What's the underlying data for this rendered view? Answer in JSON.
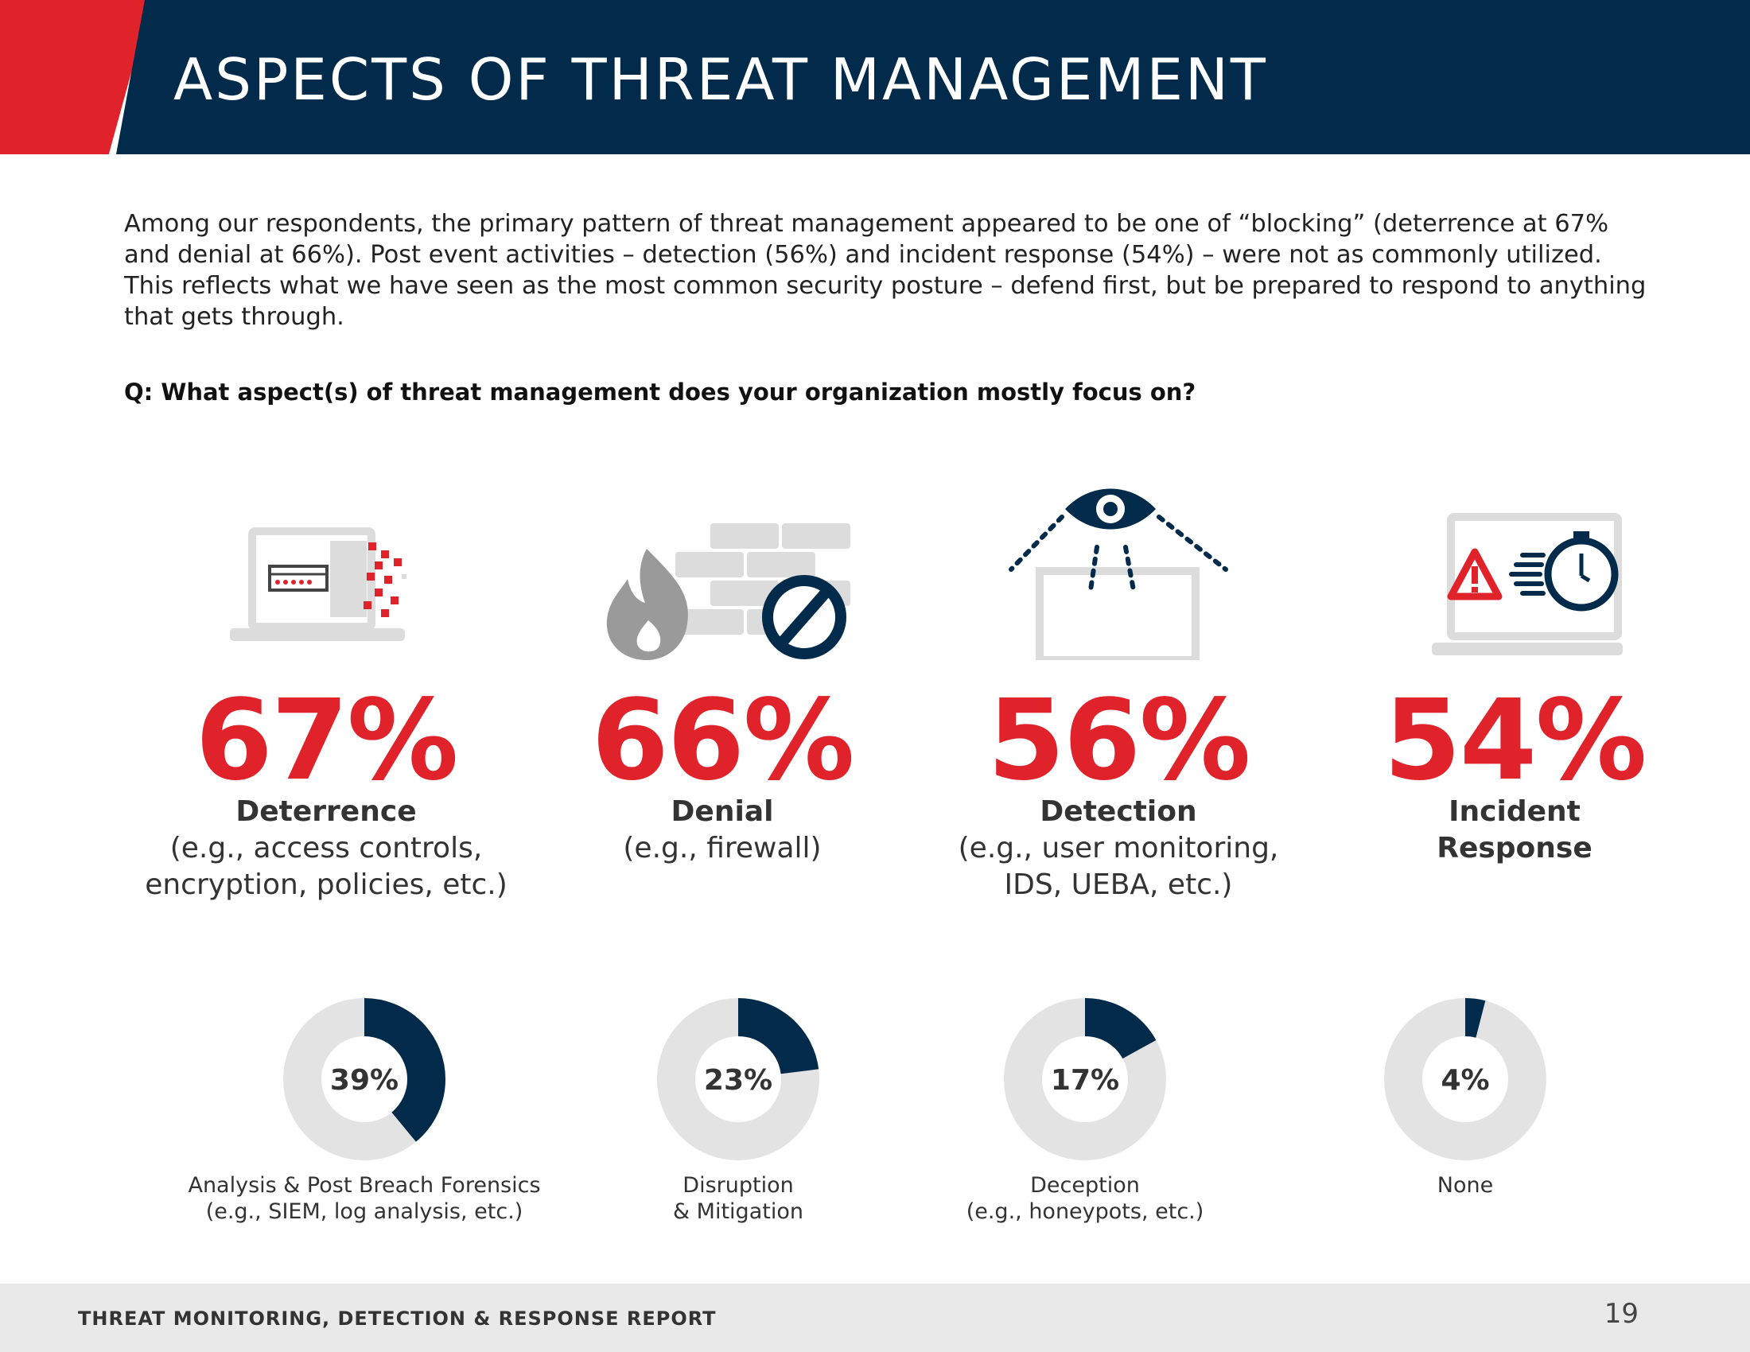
{
  "header": {
    "title": "ASPECTS OF THREAT MANAGEMENT"
  },
  "intro": "Among our respondents, the primary pattern of threat management appeared to be one of “blocking” (deterrence at 67% and denial at 66%). Post event activities – detection (56%) and incident response (54%) – were not as commonly utilized. This reflects what we have seen as the most common security posture – defend first, but be prepared to respond to anything that gets through.",
  "question": "Q: What aspect(s) of threat management does your organization mostly focus on?",
  "top_items": [
    {
      "percent": "67%",
      "label": "Deterrence",
      "sub1": "(e.g., access controls,",
      "sub2": "encryption, policies, etc.)",
      "icon": "laptop-login-icon"
    },
    {
      "percent": "66%",
      "label": "Denial",
      "sub1": "(e.g., firewall)",
      "sub2": "",
      "icon": "firewall-icon"
    },
    {
      "percent": "56%",
      "label": "Detection",
      "sub1": "(e.g., user monitoring,",
      "sub2": "IDS, UEBA, etc.)",
      "icon": "eye-monitor-icon"
    },
    {
      "percent": "54%",
      "label": "Incident",
      "label2": "Response",
      "icon": "alert-stopwatch-icon"
    }
  ],
  "chart_data": {
    "type": "donut",
    "categories": [
      "Analysis & Post Breach Forensics (e.g., SIEM, log analysis, etc.)",
      "Disruption & Mitigation",
      "Deception (e.g., honeypots, etc.)",
      "None"
    ],
    "values": [
      39,
      23,
      17,
      4
    ]
  },
  "donuts": [
    {
      "value": 39,
      "label": "39%",
      "cap1": "Analysis & Post Breach Forensics",
      "cap2": "(e.g., SIEM, log analysis, etc.)"
    },
    {
      "value": 23,
      "label": "23%",
      "cap1": "Disruption",
      "cap2": "& Mitigation"
    },
    {
      "value": 17,
      "label": "17%",
      "cap1": "Deception",
      "cap2": "(e.g., honeypots, etc.)"
    },
    {
      "value": 4,
      "label": "4%",
      "cap1": "None",
      "cap2": ""
    }
  ],
  "colors": {
    "red": "#e0232b",
    "navy": "#022b4b",
    "gray": "#e3e3e3"
  },
  "footer": {
    "title": "THREAT MONITORING, DETECTION & RESPONSE REPORT",
    "page": "19"
  }
}
